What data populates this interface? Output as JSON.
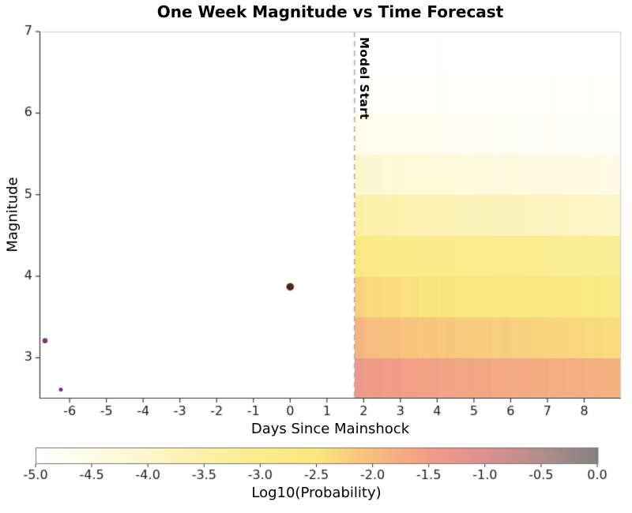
{
  "chart_data": {
    "type": "heatmap",
    "title": "One Week Magnitude vs Time Forecast",
    "xlabel": "Days Since Mainshock",
    "ylabel": "Magnitude",
    "xlim": [
      -6.82,
      9.0
    ],
    "ylim": [
      2.5,
      7.0
    ],
    "x_ticks": [
      -6,
      -5,
      -4,
      -3,
      -2,
      -1,
      0,
      1,
      2,
      3,
      4,
      5,
      6,
      7,
      8
    ],
    "y_ticks": [
      3,
      4,
      5,
      6,
      7
    ],
    "model_start": {
      "x": 1.75,
      "label": "Model Start",
      "line_color": "#b3b3b3"
    },
    "heatmap": {
      "x_start": 1.75,
      "x_bin_width": 0.25,
      "mag_start": 2.5,
      "mag_bin_width": 0.5,
      "log10_prob_rows_low_to_high_mag": [
        [
          -1.35,
          -1.48,
          -1.46,
          -1.53,
          -1.5,
          -1.56,
          -1.54,
          -1.59,
          -1.57,
          -1.62,
          -1.6,
          -1.65,
          -1.63,
          -1.67,
          -1.66,
          -1.7,
          -1.68,
          -1.72,
          -1.71,
          -1.74,
          -1.73,
          -1.77,
          -1.75,
          -1.79,
          -1.78,
          -1.82,
          -1.8,
          -1.84,
          -1.83
        ],
        [
          -1.88,
          -2.0,
          -1.98,
          -2.05,
          -2.02,
          -2.08,
          -2.06,
          -2.11,
          -2.09,
          -2.14,
          -2.12,
          -2.17,
          -2.15,
          -2.19,
          -2.18,
          -2.22,
          -2.2,
          -2.24,
          -2.23,
          -2.26,
          -2.25,
          -2.29,
          -2.27,
          -2.31,
          -2.3,
          -2.34,
          -2.32,
          -2.36,
          -2.35
        ],
        [
          -2.23,
          -2.35,
          -2.33,
          -2.4,
          -2.37,
          -2.43,
          -2.41,
          -2.46,
          -2.44,
          -2.49,
          -2.47,
          -2.52,
          -2.5,
          -2.54,
          -2.53,
          -2.57,
          -2.55,
          -2.59,
          -2.58,
          -2.61,
          -2.6,
          -2.64,
          -2.62,
          -2.66,
          -2.65,
          -2.69,
          -2.67,
          -2.71,
          -2.7
        ],
        [
          -2.68,
          -2.8,
          -2.78,
          -2.85,
          -2.82,
          -2.88,
          -2.86,
          -2.91,
          -2.89,
          -2.94,
          -2.92,
          -2.97,
          -2.95,
          -2.99,
          -2.98,
          -3.02,
          -3.0,
          -3.04,
          -3.03,
          -3.06,
          -3.05,
          -3.09,
          -3.07,
          -3.11,
          -3.1,
          -3.14,
          -3.12,
          -3.16,
          -3.15
        ],
        [
          -3.43,
          -3.55,
          -3.53,
          -3.6,
          -3.57,
          -3.63,
          -3.61,
          -3.66,
          -3.64,
          -3.69,
          -3.67,
          -3.72,
          -3.7,
          -3.74,
          -3.73,
          -3.77,
          -3.75,
          -3.79,
          -3.78,
          -3.81,
          -3.8,
          -3.84,
          -3.82,
          -3.86,
          -3.85,
          -3.89,
          -3.87,
          -3.91,
          -3.9
        ],
        [
          -4.0,
          -4.12,
          -4.1,
          -4.17,
          -4.14,
          -4.2,
          -4.18,
          -4.23,
          -4.21,
          -4.26,
          -4.24,
          -4.29,
          -4.27,
          -4.31,
          -4.3,
          -4.34,
          -4.32,
          -4.36,
          -4.35,
          -4.38,
          -4.37,
          -4.41,
          -4.39,
          -4.43,
          -4.42,
          -4.46,
          -4.44,
          -4.48,
          -4.47
        ],
        [
          -4.52,
          -4.62,
          -4.6,
          -4.66,
          -4.63,
          -4.68,
          -4.66,
          -4.7,
          -4.69,
          -4.6,
          -4.72,
          -4.75,
          -4.73,
          -4.77,
          -4.76,
          -4.79,
          -4.77,
          -4.81,
          -4.8,
          -4.82,
          -4.81,
          -4.7,
          -4.83,
          -4.85,
          -4.84,
          -4.8,
          -4.86,
          -4.88,
          -4.87
        ],
        [
          -4.93,
          -4.95,
          -4.94,
          -4.96,
          -4.95,
          -4.96,
          -4.95,
          -4.96,
          -4.95,
          -4.8,
          -4.95,
          -4.96,
          -4.95,
          -4.96,
          -4.95,
          -4.96,
          -4.95,
          -4.96,
          -4.95,
          -4.96,
          -4.95,
          -4.85,
          -4.96,
          -4.95,
          -4.96,
          -4.9,
          -4.95,
          -4.96,
          -4.95
        ],
        [
          -4.99,
          -4.99,
          -4.99,
          -4.99,
          -4.99,
          -4.99,
          -4.99,
          -4.99,
          -4.99,
          -4.93,
          -4.99,
          -4.99,
          -4.99,
          -4.99,
          -4.99,
          -4.99,
          -4.99,
          -4.99,
          -4.99,
          -4.99,
          -4.99,
          -4.96,
          -4.99,
          -4.99,
          -4.99,
          -4.99,
          -4.99,
          -4.99,
          -4.99
        ]
      ]
    },
    "observed_events": [
      {
        "x": -6.67,
        "magnitude": 3.21,
        "color": "#8e3190",
        "radius": 3.0
      },
      {
        "x": -6.24,
        "magnitude": 2.61,
        "color": "#7d2d8a",
        "radius": 2.2
      },
      {
        "x": 0.0,
        "magnitude": 3.87,
        "color": "#4e2a1b",
        "radius": 4.5
      }
    ],
    "colorbar": {
      "label": "Log10(Probability)",
      "min": -5.0,
      "max": 0.0,
      "tick_labels": [
        "-5.0",
        "-4.5",
        "-4.0",
        "-3.5",
        "-3.0",
        "-2.5",
        "-2.0",
        "-1.5",
        "-1.0",
        "-0.5",
        "0.0"
      ],
      "stops": [
        {
          "v": -5.0,
          "color": "#ffffff"
        },
        {
          "v": -4.5,
          "color": "#fefbe7"
        },
        {
          "v": -4.0,
          "color": "#fcf6cb"
        },
        {
          "v": -3.5,
          "color": "#fbf0a8"
        },
        {
          "v": -3.0,
          "color": "#fbec8d"
        },
        {
          "v": -2.5,
          "color": "#fae87e"
        },
        {
          "v": -2.0,
          "color": "#f7bd7e"
        },
        {
          "v": -1.5,
          "color": "#f09c86"
        },
        {
          "v": -1.0,
          "color": "#dd9090"
        },
        {
          "v": -0.5,
          "color": "#b18e8b"
        },
        {
          "v": 0.0,
          "color": "#868180"
        }
      ]
    },
    "background": "#ffffff"
  }
}
